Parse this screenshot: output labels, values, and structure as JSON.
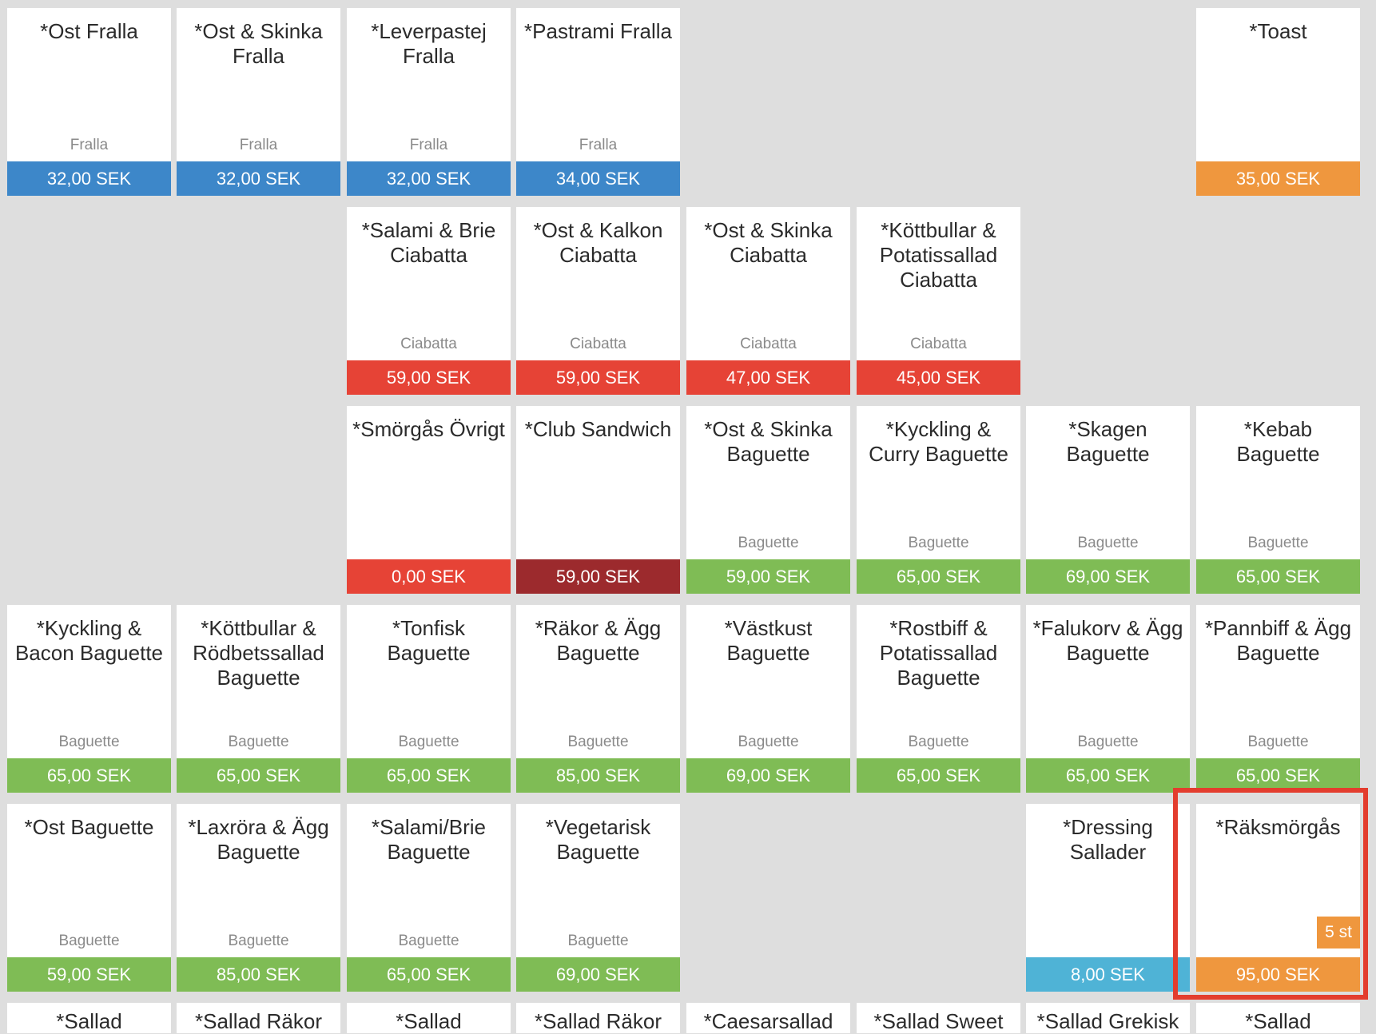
{
  "colors": {
    "blue": "#3d87c9",
    "red": "#e64336",
    "darkred": "#9c2a2d",
    "green": "#7fbc55",
    "orange": "#ef973e",
    "lightblue": "#4fb3d6",
    "highlight": "#e33d2e"
  },
  "products": [
    {
      "row": 0,
      "col": 0,
      "name": "*Ost Fralla",
      "category": "Fralla",
      "price": "32,00 SEK",
      "color": "blue"
    },
    {
      "row": 0,
      "col": 1,
      "name": "*Ost & Skinka Fralla",
      "category": "Fralla",
      "price": "32,00 SEK",
      "color": "blue"
    },
    {
      "row": 0,
      "col": 2,
      "name": "*Leverpastej Fralla",
      "category": "Fralla",
      "price": "32,00 SEK",
      "color": "blue"
    },
    {
      "row": 0,
      "col": 3,
      "name": "*Pastrami Fralla",
      "category": "Fralla",
      "price": "34,00 SEK",
      "color": "blue"
    },
    {
      "row": 0,
      "col": 7,
      "name": "*Toast",
      "category": "",
      "price": "35,00 SEK",
      "color": "orange"
    },
    {
      "row": 1,
      "col": 2,
      "name": "*Salami & Brie Ciabatta",
      "category": "Ciabatta",
      "price": "59,00 SEK",
      "color": "red"
    },
    {
      "row": 1,
      "col": 3,
      "name": "*Ost & Kalkon Ciabatta",
      "category": "Ciabatta",
      "price": "59,00 SEK",
      "color": "red"
    },
    {
      "row": 1,
      "col": 4,
      "name": "*Ost & Skinka Ciabatta",
      "category": "Ciabatta",
      "price": "47,00 SEK",
      "color": "red"
    },
    {
      "row": 1,
      "col": 5,
      "name": "*Köttbullar & Potatissallad Ciabatta",
      "category": "Ciabatta",
      "price": "45,00 SEK",
      "color": "red"
    },
    {
      "row": 2,
      "col": 2,
      "name": "*Smörgås Övrigt",
      "category": "",
      "price": "0,00 SEK",
      "color": "red"
    },
    {
      "row": 2,
      "col": 3,
      "name": "*Club Sandwich",
      "category": "",
      "price": "59,00 SEK",
      "color": "darkred"
    },
    {
      "row": 2,
      "col": 4,
      "name": "*Ost & Skinka Baguette",
      "category": "Baguette",
      "price": "59,00 SEK",
      "color": "green"
    },
    {
      "row": 2,
      "col": 5,
      "name": "*Kyckling & Curry Baguette",
      "category": "Baguette",
      "price": "65,00 SEK",
      "color": "green"
    },
    {
      "row": 2,
      "col": 6,
      "name": "*Skagen Baguette",
      "category": "Baguette",
      "price": "69,00 SEK",
      "color": "green"
    },
    {
      "row": 2,
      "col": 7,
      "name": "*Kebab Baguette",
      "category": "Baguette",
      "price": "65,00 SEK",
      "color": "green"
    },
    {
      "row": 3,
      "col": 0,
      "name": "*Kyckling & Bacon Baguette",
      "category": "Baguette",
      "price": "65,00 SEK",
      "color": "green"
    },
    {
      "row": 3,
      "col": 1,
      "name": "*Köttbullar & Rödbetssallad Baguette",
      "category": "Baguette",
      "price": "65,00 SEK",
      "color": "green"
    },
    {
      "row": 3,
      "col": 2,
      "name": "*Tonfisk Baguette",
      "category": "Baguette",
      "price": "65,00 SEK",
      "color": "green"
    },
    {
      "row": 3,
      "col": 3,
      "name": "*Räkor & Ägg Baguette",
      "category": "Baguette",
      "price": "85,00 SEK",
      "color": "green"
    },
    {
      "row": 3,
      "col": 4,
      "name": "*Västkust Baguette",
      "category": "Baguette",
      "price": "69,00 SEK",
      "color": "green"
    },
    {
      "row": 3,
      "col": 5,
      "name": "*Rostbiff & Potatissallad Baguette",
      "category": "Baguette",
      "price": "65,00 SEK",
      "color": "green"
    },
    {
      "row": 3,
      "col": 6,
      "name": "*Falukorv & Ägg Baguette",
      "category": "Baguette",
      "price": "65,00 SEK",
      "color": "green"
    },
    {
      "row": 3,
      "col": 7,
      "name": "*Pannbiff & Ägg Baguette",
      "category": "Baguette",
      "price": "65,00 SEK",
      "color": "green"
    },
    {
      "row": 4,
      "col": 0,
      "name": "*Ost Baguette",
      "category": "Baguette",
      "price": "59,00 SEK",
      "color": "green"
    },
    {
      "row": 4,
      "col": 1,
      "name": "*Laxröra & Ägg Baguette",
      "category": "Baguette",
      "price": "85,00 SEK",
      "color": "green"
    },
    {
      "row": 4,
      "col": 2,
      "name": "*Salami/Brie Baguette",
      "category": "Baguette",
      "price": "65,00 SEK",
      "color": "green"
    },
    {
      "row": 4,
      "col": 3,
      "name": "*Vegetarisk Baguette",
      "category": "Baguette",
      "price": "69,00 SEK",
      "color": "green"
    },
    {
      "row": 4,
      "col": 6,
      "name": "*Dressing Sallader",
      "category": "",
      "price": "8,00 SEK",
      "color": "lightblue"
    },
    {
      "row": 4,
      "col": 7,
      "name": "*Räksmörgås",
      "category": "",
      "price": "95,00 SEK",
      "color": "orange",
      "badge": "5 st",
      "selected": true
    },
    {
      "row": 5,
      "col": 0,
      "name": "*Sallad",
      "category": "",
      "price": "",
      "color": "green",
      "cut": true
    },
    {
      "row": 5,
      "col": 1,
      "name": "*Sallad Räkor",
      "category": "",
      "price": "",
      "color": "green",
      "cut": true
    },
    {
      "row": 5,
      "col": 2,
      "name": "*Sallad",
      "category": "",
      "price": "",
      "color": "green",
      "cut": true
    },
    {
      "row": 5,
      "col": 3,
      "name": "*Sallad Räkor",
      "category": "",
      "price": "",
      "color": "green",
      "cut": true
    },
    {
      "row": 5,
      "col": 4,
      "name": "*Caesarsallad",
      "category": "",
      "price": "",
      "color": "green",
      "cut": true
    },
    {
      "row": 5,
      "col": 5,
      "name": "*Sallad Sweet",
      "category": "",
      "price": "",
      "color": "green",
      "cut": true
    },
    {
      "row": 5,
      "col": 6,
      "name": "*Sallad Grekisk",
      "category": "",
      "price": "",
      "color": "green",
      "cut": true
    },
    {
      "row": 5,
      "col": 7,
      "name": "*Sallad",
      "category": "",
      "price": "",
      "color": "green",
      "cut": true
    }
  ]
}
